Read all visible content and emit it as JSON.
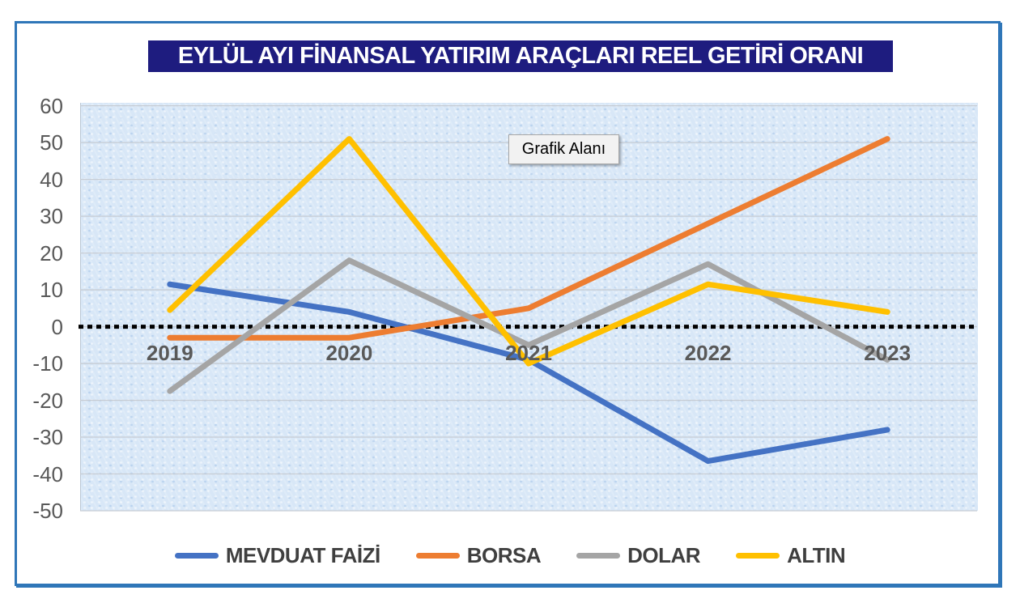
{
  "title": "EYLÜL AYI FİNANSAL YATIRIM ARAÇLARI REEL GETİRİ ORANI",
  "tooltip_label": "Grafik Alanı",
  "colors": {
    "title_bg": "#1E1C7F",
    "title_text": "#FFFFFF",
    "frame_border": "#2F76B8",
    "plot_bg": "#D8E7F7",
    "gridline": "#C6CCD4",
    "axis_label": "#595959",
    "legend_label": "#3F3F3F",
    "zero_line": "#000000"
  },
  "chart_data": {
    "type": "line",
    "title": "EYLÜL AYI FİNANSAL YATIRIM ARAÇLARI REEL GETİRİ ORANI",
    "categories": [
      "2019",
      "2020",
      "2021",
      "2022",
      "2023"
    ],
    "series": [
      {
        "name": "MEVDUAT FAİZİ",
        "color": "#4472C4",
        "values": [
          11.5,
          4,
          -9,
          -36.5,
          -28
        ]
      },
      {
        "name": "BORSA",
        "color": "#ED7D31",
        "values": [
          -3,
          -3,
          5,
          28,
          51
        ]
      },
      {
        "name": "DOLAR",
        "color": "#A5A5A5",
        "values": [
          -17.5,
          18,
          -5,
          17,
          -9
        ]
      },
      {
        "name": "ALTIN",
        "color": "#FFC000",
        "values": [
          4.5,
          51,
          -10,
          11.5,
          4
        ]
      }
    ],
    "yticks": [
      60,
      50,
      40,
      30,
      20,
      10,
      0,
      -10,
      -20,
      -30,
      -40,
      -50
    ],
    "ylim": [
      -50,
      60.8
    ],
    "xlabel": "",
    "ylabel": "",
    "grid": true,
    "zero_line_style": "dotted",
    "legend_position": "bottom",
    "annotations": [
      {
        "text": "Grafik Alanı"
      }
    ]
  }
}
